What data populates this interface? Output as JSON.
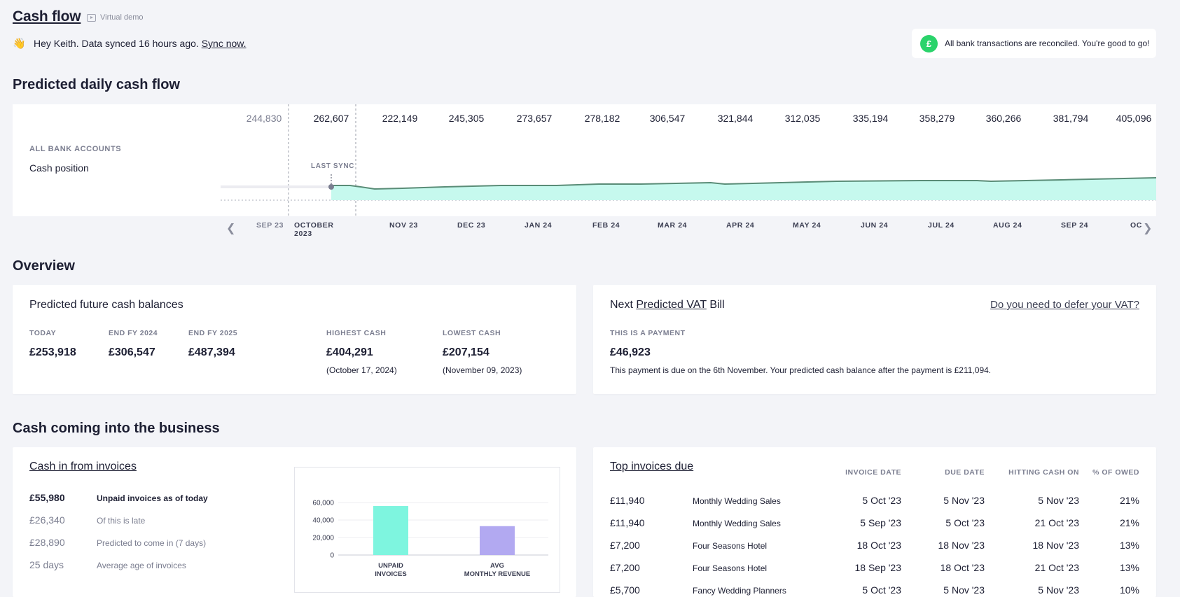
{
  "header": {
    "title": "Cash flow",
    "demo_label": "Virtual demo",
    "greeting": "Hey Keith. Data synced 16 hours ago.",
    "sync_link": "Sync now.",
    "notice": "All bank transactions are reconciled. You're good to go!"
  },
  "daily": {
    "title": "Predicted daily cash flow",
    "left_label": "ALL BANK ACCOUNTS",
    "left_title": "Cash position",
    "last_sync": "LAST SYNC",
    "values": [
      "244,830",
      "262,607",
      "222,149",
      "245,305",
      "273,657",
      "278,182",
      "306,547",
      "321,844",
      "312,035",
      "335,194",
      "358,279",
      "360,266",
      "381,794",
      "405,096"
    ],
    "months": [
      "SEP 23",
      "OCTOBER",
      "NOV 23",
      "DEC 23",
      "JAN 24",
      "FEB 24",
      "MAR 24",
      "APR 24",
      "MAY 24",
      "JUN 24",
      "JUL 24",
      "AUG 24",
      "SEP 24",
      "OC"
    ],
    "month_year": "2023"
  },
  "overview": {
    "title": "Overview",
    "balances": {
      "title": "Predicted future cash balances",
      "today_label": "TODAY",
      "today": "£253,918",
      "fy24_label": "END FY 2024",
      "fy24": "£306,547",
      "fy25_label": "END FY 2025",
      "fy25": "£487,394",
      "high_label": "HIGHEST CASH",
      "high": "£404,291",
      "high_date": "(October 17, 2024)",
      "low_label": "LOWEST CASH",
      "low": "£207,154",
      "low_date": "(November 09, 2023)"
    },
    "vat": {
      "title_a": "Next",
      "title_link": "Predicted VAT",
      "title_b": "Bill",
      "defer_link": "Do you need to defer your VAT?",
      "type_label": "THIS IS A PAYMENT",
      "amount": "£46,923",
      "note": "This payment is due on the 6th November. Your predicted cash balance after the payment is £211,094."
    }
  },
  "incoming": {
    "title": "Cash coming into the business",
    "invoices": {
      "title": "Cash in from invoices",
      "rows": [
        {
          "value": "£55,980",
          "label": "Unpaid invoices as of today"
        },
        {
          "value": "£26,340",
          "label": "Of this is late"
        },
        {
          "value": "£28,890",
          "label": "Predicted to come in (7 days)"
        },
        {
          "value": "25 days",
          "label": "Average age of invoices"
        }
      ]
    },
    "top": {
      "title": "Top invoices due",
      "headers": [
        "INVOICE DATE",
        "DUE DATE",
        "HITTING CASH ON",
        "% OF OWED"
      ],
      "rows": [
        {
          "amount": "£11,940",
          "name": "Monthly Wedding Sales",
          "inv": "5 Oct '23",
          "due": "5 Nov '23",
          "hit": "5 Nov '23",
          "pct": "21%"
        },
        {
          "amount": "£11,940",
          "name": "Monthly Wedding Sales",
          "inv": "5 Sep '23",
          "due": "5 Oct '23",
          "hit": "21 Oct '23",
          "pct": "21%"
        },
        {
          "amount": "£7,200",
          "name": "Four Seasons Hotel",
          "inv": "18 Oct '23",
          "due": "18 Nov '23",
          "hit": "18 Nov '23",
          "pct": "13%"
        },
        {
          "amount": "£7,200",
          "name": "Four Seasons Hotel",
          "inv": "18 Sep '23",
          "due": "18 Oct '23",
          "hit": "21 Oct '23",
          "pct": "13%"
        },
        {
          "amount": "£5,700",
          "name": "Fancy Wedding Planners",
          "inv": "5 Oct '23",
          "due": "5 Nov '23",
          "hit": "5 Nov '23",
          "pct": "10%"
        }
      ]
    }
  },
  "chart_data": {
    "type": "bar",
    "categories": [
      "UNPAID INVOICES",
      "AVG MONTHLY REVENUE"
    ],
    "values": [
      55980,
      33000
    ],
    "colors": [
      "#7ef5df",
      "#b2a9f1"
    ],
    "yticks": [
      "60,000",
      "40,000",
      "20,000",
      "0"
    ],
    "ylim": [
      0,
      60000
    ]
  }
}
